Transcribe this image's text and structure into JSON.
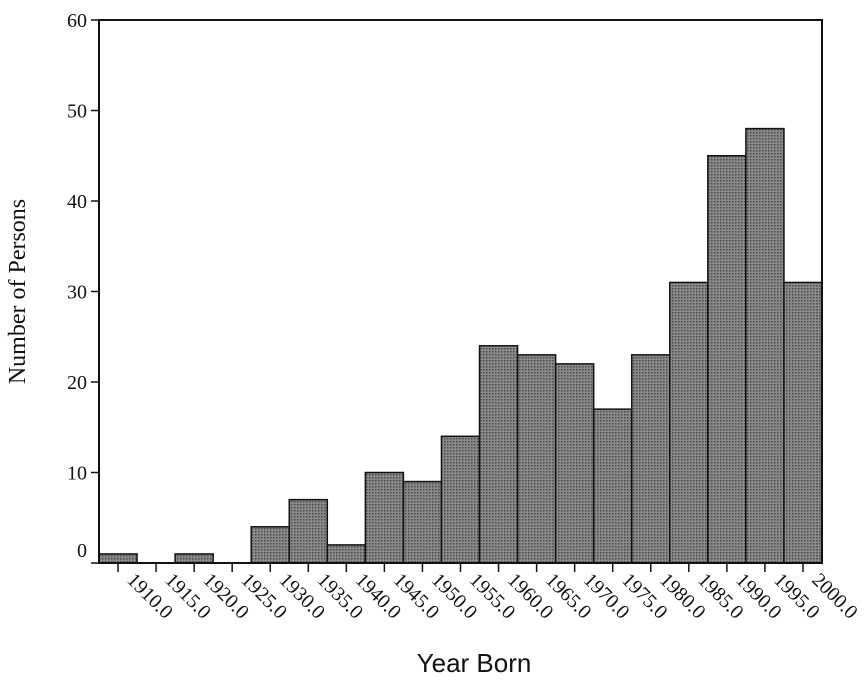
{
  "chart_data": {
    "type": "bar",
    "title": "",
    "xlabel": "Year Born",
    "ylabel": "Number of Persons",
    "bin_start": 1907.5,
    "bin_width": 5,
    "values": [
      1,
      0,
      1,
      0,
      4,
      7,
      2,
      10,
      9,
      14,
      24,
      23,
      22,
      17,
      23,
      31,
      45,
      48,
      31
    ],
    "x_ticks": [
      "1910.0",
      "1915.0",
      "1920.0",
      "1925.0",
      "1930.0",
      "1935.0",
      "1940.0",
      "1945.0",
      "1950.0",
      "1955.0",
      "1960.0",
      "1965.0",
      "1970.0",
      "1975.0",
      "1980.0",
      "1985.0",
      "1990.0",
      "1995.0",
      "2000.0"
    ],
    "y_ticks": [
      "0",
      "10",
      "20",
      "30",
      "40",
      "50",
      "60"
    ],
    "ylim": [
      0,
      60
    ],
    "grid": false,
    "bar_color": "#6e6e6e"
  }
}
